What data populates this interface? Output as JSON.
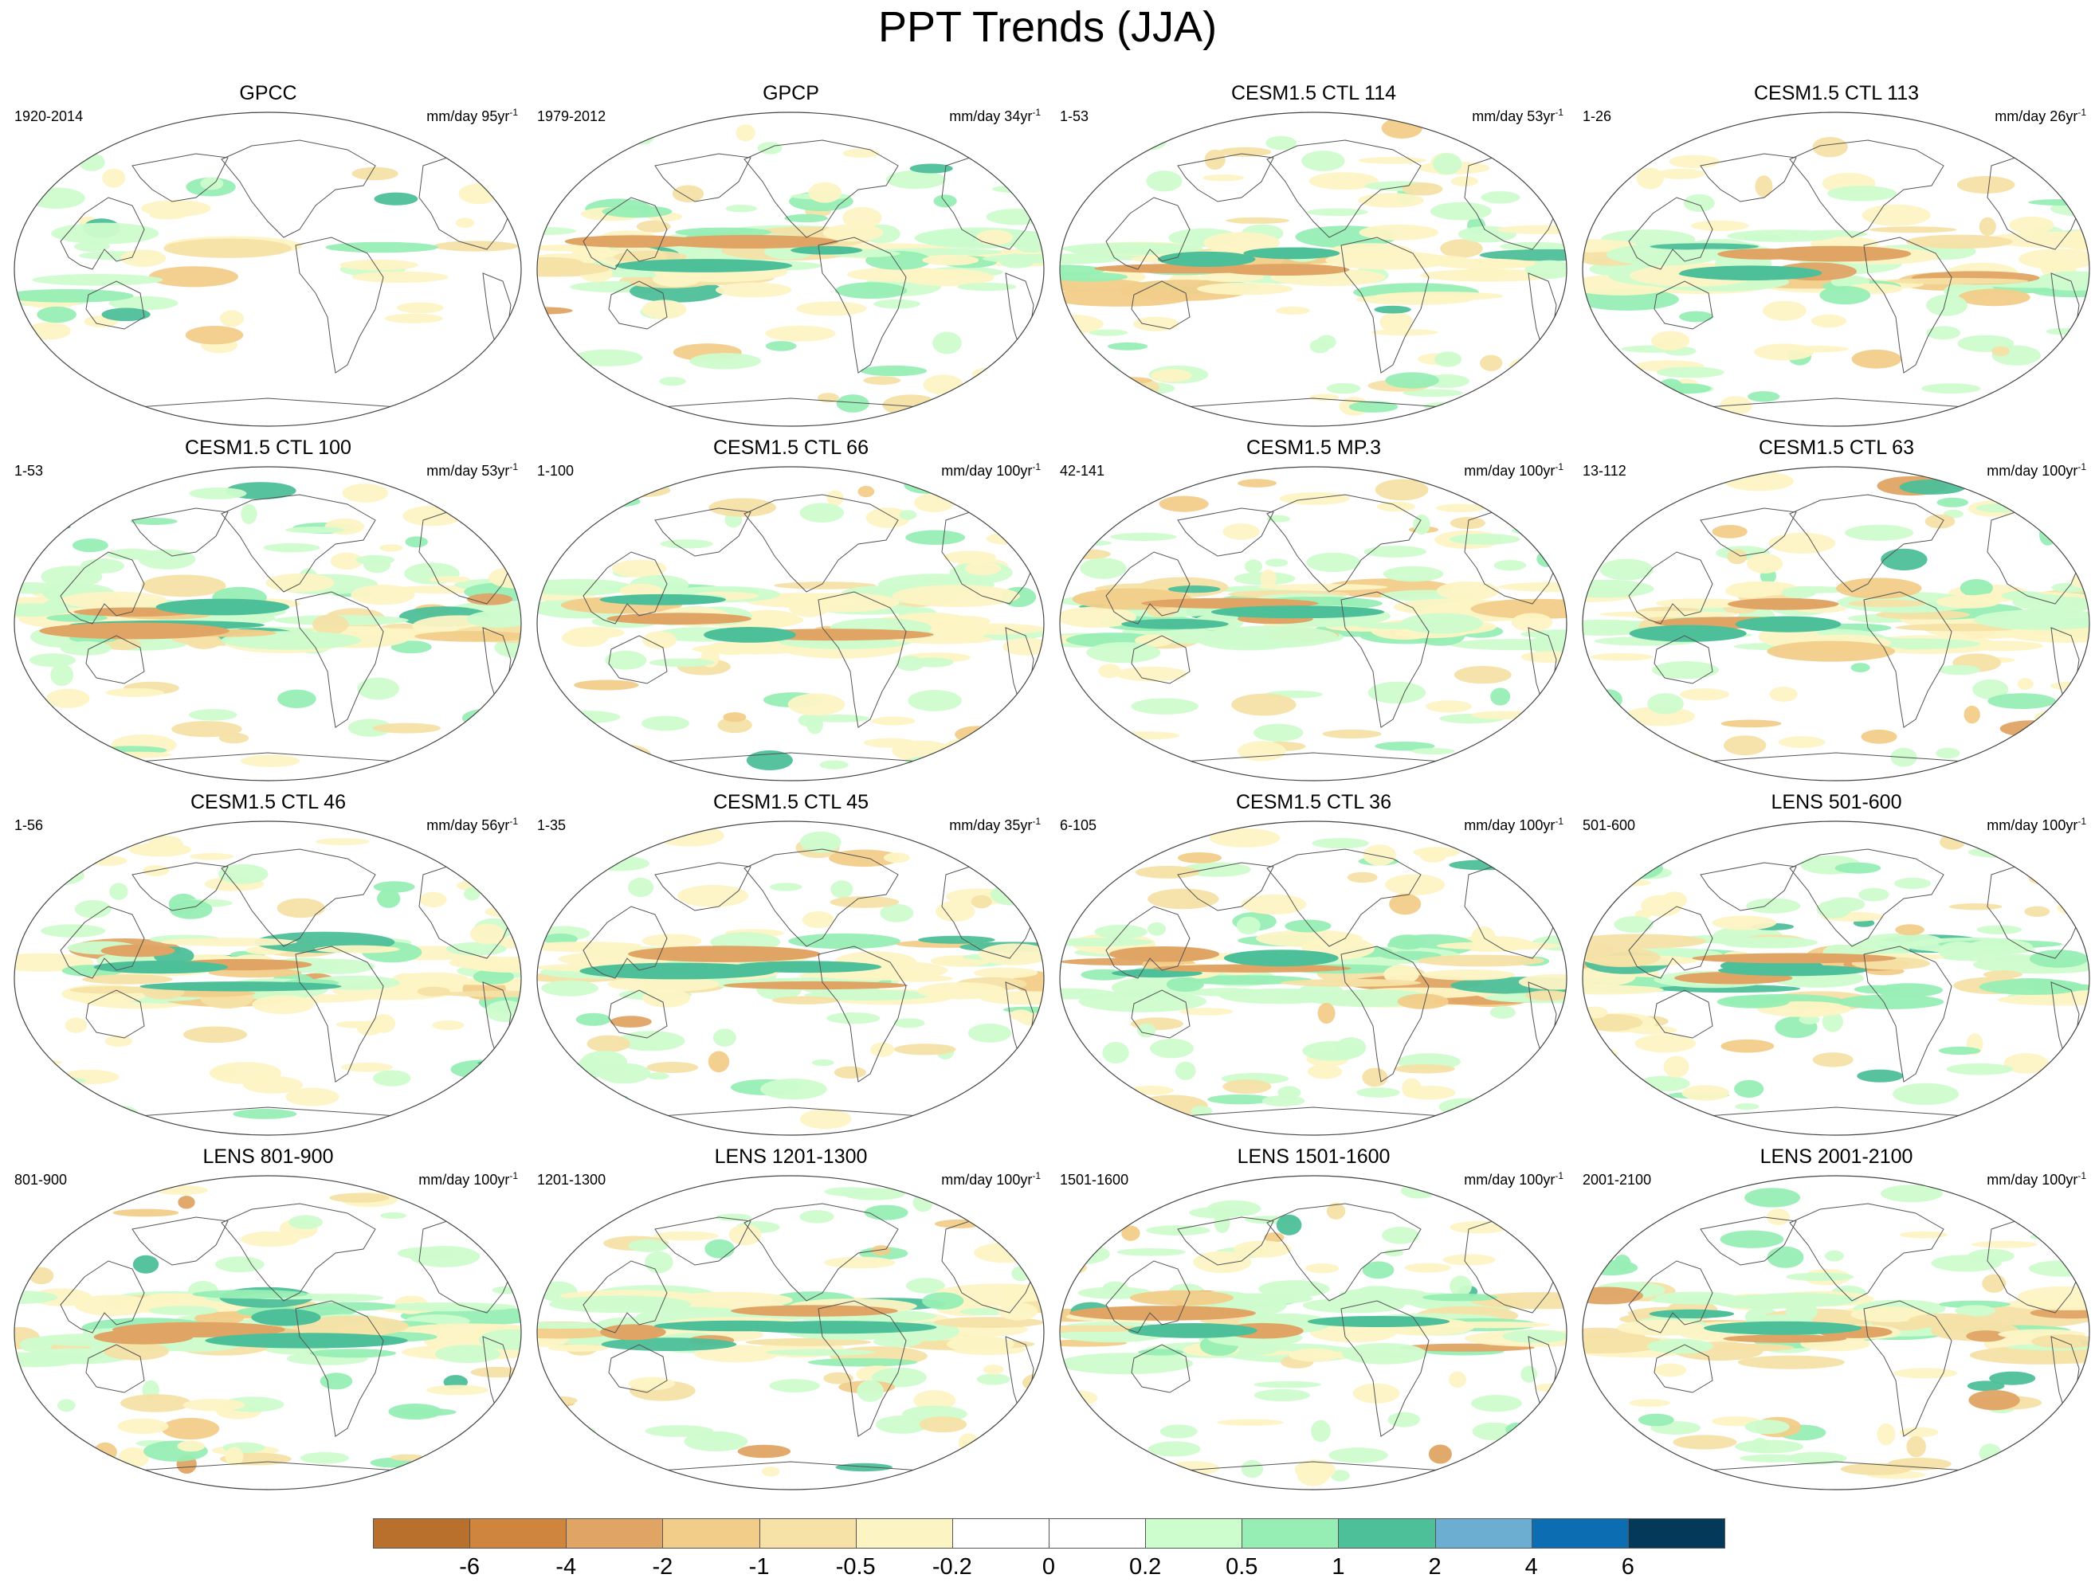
{
  "title": "PPT Trends (JJA)",
  "panels": [
    {
      "id": "gpcc",
      "title": "GPCC",
      "period": "1920-2014",
      "units": "mm/day 95yr",
      "sup": "-1"
    },
    {
      "id": "gpcp",
      "title": "GPCP",
      "period": "1979-2012",
      "units": "mm/day 34yr",
      "sup": "-1"
    },
    {
      "id": "ctl114",
      "title": "CESM1.5 CTL 114",
      "period": "1-53",
      "units": "mm/day 53yr",
      "sup": "-1"
    },
    {
      "id": "ctl113",
      "title": "CESM1.5 CTL 113",
      "period": "1-26",
      "units": "mm/day 26yr",
      "sup": "-1"
    },
    {
      "id": "ctl100",
      "title": "CESM1.5 CTL 100",
      "period": "1-53",
      "units": "mm/day 53yr",
      "sup": "-1"
    },
    {
      "id": "ctl66",
      "title": "CESM1.5 CTL 66",
      "period": "1-100",
      "units": "mm/day 100yr",
      "sup": "-1"
    },
    {
      "id": "mp3",
      "title": "CESM1.5 MP.3",
      "period": "42-141",
      "units": "mm/day 100yr",
      "sup": "-1"
    },
    {
      "id": "ctl63",
      "title": "CESM1.5 CTL 63",
      "period": "13-112",
      "units": "mm/day 100yr",
      "sup": "-1"
    },
    {
      "id": "ctl46",
      "title": "CESM1.5 CTL 46",
      "period": "1-56",
      "units": "mm/day 56yr",
      "sup": "-1"
    },
    {
      "id": "ctl45",
      "title": "CESM1.5 CTL 45",
      "period": "1-35",
      "units": "mm/day 35yr",
      "sup": "-1"
    },
    {
      "id": "ctl36",
      "title": "CESM1.5 CTL 36",
      "period": "6-105",
      "units": "mm/day 100yr",
      "sup": "-1"
    },
    {
      "id": "lens501",
      "title": "LENS 501-600",
      "period": "501-600",
      "units": "mm/day 100yr",
      "sup": "-1"
    },
    {
      "id": "lens801",
      "title": "LENS 801-900",
      "period": "801-900",
      "units": "mm/day 100yr",
      "sup": "-1"
    },
    {
      "id": "lens1201",
      "title": "LENS 1201-1300",
      "period": "1201-1300",
      "units": "mm/day 100yr",
      "sup": "-1"
    },
    {
      "id": "lens1501",
      "title": "LENS 1501-1600",
      "period": "1501-1600",
      "units": "mm/day 100yr",
      "sup": "-1"
    },
    {
      "id": "lens2001",
      "title": "LENS 2001-2100",
      "period": "2001-2100",
      "units": "mm/day 100yr",
      "sup": "-1"
    }
  ],
  "colorbar": {
    "colors": [
      "#b8702c",
      "#d0853f",
      "#e0a465",
      "#f2cd8a",
      "#f6e1a6",
      "#fdf4c4",
      "#ffffff",
      "#ffffff",
      "#cdfccd",
      "#97eeb4",
      "#4dbf99",
      "#6baed1",
      "#0d6db2",
      "#04395a"
    ],
    "labels": [
      "-6",
      "-4",
      "-2",
      "-1",
      "-0.5",
      "-0.2",
      "0",
      "0.2",
      "0.5",
      "1",
      "2",
      "4",
      "6"
    ]
  }
}
